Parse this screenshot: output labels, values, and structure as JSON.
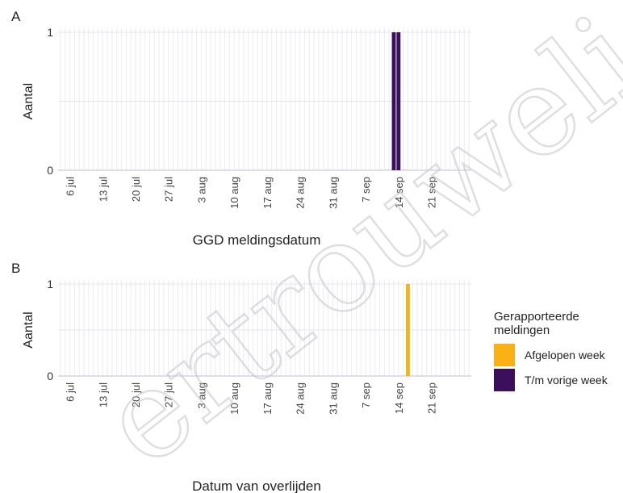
{
  "chart_data": [
    {
      "type": "bar",
      "panel_label": "A",
      "xlabel": "GGD meldingsdatum",
      "ylabel": "Aantal",
      "ylim": [
        0,
        1
      ],
      "yticks": [
        0,
        1
      ],
      "xlim": [
        "2020-07-04",
        "2020-09-29"
      ],
      "xticks": [
        "2020-07-06",
        "2020-07-13",
        "2020-07-20",
        "2020-07-27",
        "2020-08-03",
        "2020-08-10",
        "2020-08-17",
        "2020-08-24",
        "2020-08-31",
        "2020-09-07",
        "2020-09-14",
        "2020-09-21"
      ],
      "xtick_labels": [
        "6 jul",
        "13 jul",
        "20 jul",
        "27 jul",
        "3 aug",
        "10 aug",
        "17 aug",
        "24 aug",
        "31 aug",
        "7 sep",
        "14 sep",
        "21 sep"
      ],
      "series": [
        {
          "name": "T/m vorige week",
          "color": "#3b0f5c",
          "points": [
            {
              "x": "2020-09-13",
              "y": 1
            },
            {
              "x": "2020-09-14",
              "y": 1
            }
          ]
        }
      ]
    },
    {
      "type": "bar",
      "panel_label": "B",
      "xlabel": "Datum van overlijden",
      "ylabel": "Aantal",
      "ylim": [
        0,
        1
      ],
      "yticks": [
        0,
        1
      ],
      "xlim": [
        "2020-07-04",
        "2020-09-29"
      ],
      "xticks": [
        "2020-07-06",
        "2020-07-13",
        "2020-07-20",
        "2020-07-27",
        "2020-08-03",
        "2020-08-10",
        "2020-08-17",
        "2020-08-24",
        "2020-08-31",
        "2020-09-07",
        "2020-09-14",
        "2020-09-21"
      ],
      "xtick_labels": [
        "6 jul",
        "13 jul",
        "20 jul",
        "27 jul",
        "3 aug",
        "10 aug",
        "17 aug",
        "24 aug",
        "31 aug",
        "7 sep",
        "14 sep",
        "21 sep"
      ],
      "series": [
        {
          "name": "Afgelopen week",
          "color": "#f9b115",
          "points": [
            {
              "x": "2020-09-16",
              "y": 1
            }
          ]
        }
      ]
    }
  ],
  "legend": {
    "title": "Gerapporteerde meldingen",
    "placement": "right",
    "items": [
      {
        "label": "Afgelopen week",
        "color": "#f9b115"
      },
      {
        "label": "T/m vorige week",
        "color": "#3b0f5c"
      }
    ]
  }
}
